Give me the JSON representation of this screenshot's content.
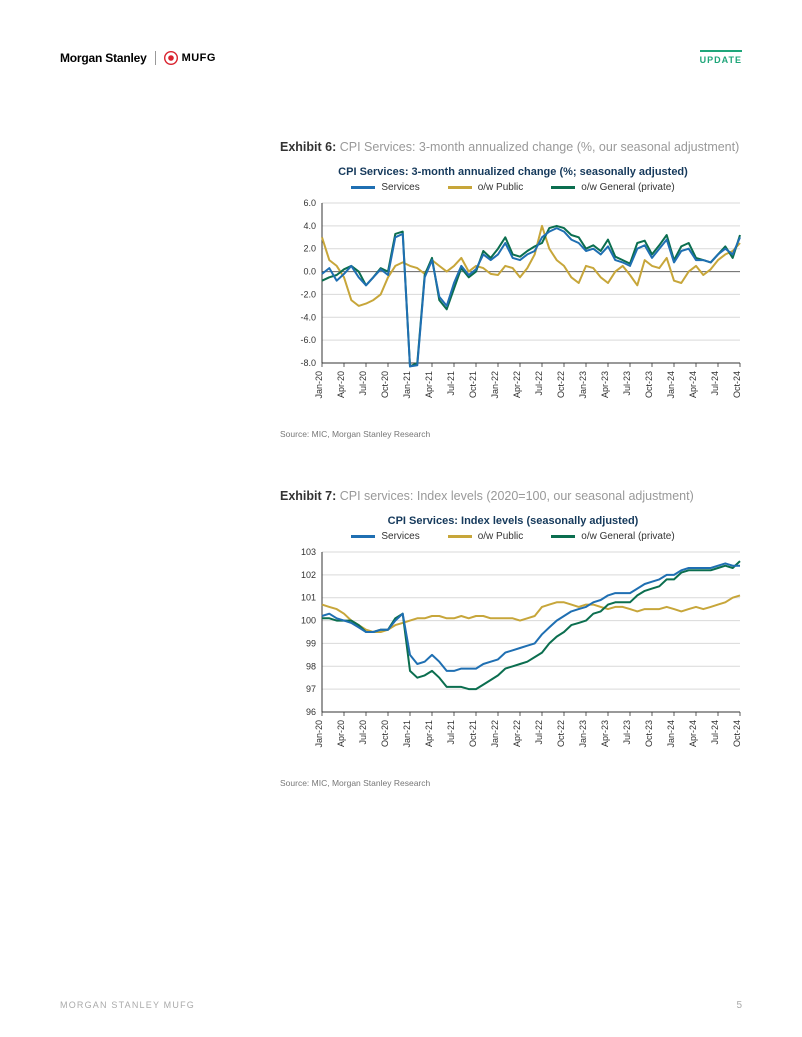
{
  "header": {
    "ms_text": "Morgan Stanley",
    "mufg_text": "MUFG",
    "update_label": "UPDATE"
  },
  "footer": {
    "left": "MORGAN STANLEY MUFG",
    "page": "5"
  },
  "colors": {
    "services": "#1f6fb2",
    "public": "#c7a63a",
    "general": "#0b6e4f",
    "grid": "#d9d9d9",
    "axis": "#333333",
    "title": "#15395b",
    "zero_line": "#7a7a7a"
  },
  "x_labels": [
    "Jan-20",
    "Apr-20",
    "Jul-20",
    "Oct-20",
    "Jan-21",
    "Apr-21",
    "Jul-21",
    "Oct-21",
    "Jan-22",
    "Apr-22",
    "Jul-22",
    "Oct-22",
    "Jan-23",
    "Apr-23",
    "Jul-23",
    "Oct-23",
    "Jan-24",
    "Apr-24",
    "Jul-24",
    "Oct-24"
  ],
  "legend_labels": {
    "services": "Services",
    "public": "o/w Public",
    "general": "o/w General (private)"
  },
  "exhibit6": {
    "num": "Exhibit 6:",
    "title": "CPI Services: 3-month annualized change (%, our seasonal adjustment)",
    "chart_title": "CPI Services: 3-month annualized change (%; seasonally adjusted)",
    "source": "Source: MIC, Morgan Stanley Research",
    "ylim": [
      -8,
      6
    ],
    "ytick_step": 2,
    "yticks": [
      "6.0",
      "4.0",
      "2.0",
      "0.0",
      "-2.0",
      "-4.0",
      "-6.0",
      "-8.0"
    ],
    "series": {
      "services": [
        -0.2,
        0.3,
        -0.8,
        -0.2,
        0.5,
        -0.5,
        -1.2,
        -0.5,
        0.2,
        -0.3,
        3.0,
        3.3,
        -8.3,
        -8.2,
        -0.5,
        1.0,
        -2.2,
        -3.0,
        -1.0,
        0.5,
        -0.3,
        0.2,
        1.5,
        1.0,
        1.5,
        2.5,
        1.2,
        1.0,
        1.5,
        1.8,
        3.0,
        3.5,
        3.8,
        3.5,
        2.8,
        2.5,
        1.8,
        2.0,
        1.5,
        2.2,
        1.0,
        0.8,
        0.5,
        2.0,
        2.3,
        1.2,
        2.0,
        2.8,
        0.8,
        1.8,
        2.0,
        1.0,
        1.0,
        0.8,
        1.5,
        2.0,
        1.5,
        3.0
      ],
      "public": [
        3.0,
        1.0,
        0.5,
        -0.5,
        -2.5,
        -3.0,
        -2.8,
        -2.5,
        -2.0,
        -0.5,
        0.5,
        0.8,
        0.5,
        0.3,
        -0.2,
        1.0,
        0.5,
        0.0,
        0.5,
        1.2,
        0.0,
        0.5,
        0.3,
        -0.2,
        -0.3,
        0.5,
        0.3,
        -0.5,
        0.3,
        1.5,
        4.0,
        2.0,
        1.0,
        0.5,
        -0.5,
        -1.0,
        0.5,
        0.3,
        -0.5,
        -1.0,
        0.0,
        0.5,
        -0.3,
        -1.2,
        1.0,
        0.5,
        0.3,
        1.2,
        -0.8,
        -1.0,
        0.0,
        0.5,
        -0.3,
        0.2,
        1.0,
        1.5,
        1.8,
        2.5
      ],
      "general": [
        -0.8,
        -0.5,
        -0.3,
        0.2,
        0.5,
        0.0,
        -1.2,
        -0.5,
        0.3,
        0.0,
        3.3,
        3.5,
        -8.3,
        -8.0,
        -0.3,
        1.2,
        -2.5,
        -3.3,
        -1.5,
        0.3,
        -0.5,
        0.0,
        1.8,
        1.2,
        2.0,
        3.0,
        1.5,
        1.3,
        1.8,
        2.2,
        2.5,
        3.8,
        4.0,
        3.8,
        3.2,
        3.0,
        2.0,
        2.3,
        1.8,
        2.8,
        1.3,
        1.0,
        0.7,
        2.5,
        2.7,
        1.5,
        2.3,
        3.2,
        1.0,
        2.2,
        2.5,
        1.2,
        1.0,
        0.8,
        1.5,
        2.2,
        1.2,
        3.2
      ]
    }
  },
  "exhibit7": {
    "num": "Exhibit 7:",
    "title": "CPI services: Index levels (2020=100, our seasonal adjustment)",
    "chart_title": "CPI Services: Index levels (seasonally adjusted)",
    "source": "Source: MIC, Morgan Stanley Research",
    "ylim": [
      96,
      103
    ],
    "ytick_step": 1,
    "yticks": [
      "103",
      "102",
      "101",
      "100",
      "99",
      "98",
      "97",
      "96"
    ],
    "series": {
      "services": [
        100.2,
        100.3,
        100.1,
        100.0,
        99.9,
        99.7,
        99.5,
        99.5,
        99.6,
        99.6,
        100.0,
        100.3,
        98.5,
        98.1,
        98.2,
        98.5,
        98.2,
        97.8,
        97.8,
        97.9,
        97.9,
        97.9,
        98.1,
        98.2,
        98.3,
        98.6,
        98.7,
        98.8,
        98.9,
        99.0,
        99.4,
        99.7,
        100.0,
        100.2,
        100.4,
        100.5,
        100.6,
        100.8,
        100.9,
        101.1,
        101.2,
        101.2,
        101.2,
        101.4,
        101.6,
        101.7,
        101.8,
        102.0,
        102.0,
        102.2,
        102.3,
        102.3,
        102.3,
        102.3,
        102.4,
        102.5,
        102.4,
        102.4
      ],
      "public": [
        100.7,
        100.6,
        100.5,
        100.3,
        100.0,
        99.8,
        99.6,
        99.5,
        99.5,
        99.6,
        99.8,
        99.9,
        100.0,
        100.1,
        100.1,
        100.2,
        100.2,
        100.1,
        100.1,
        100.2,
        100.1,
        100.2,
        100.2,
        100.1,
        100.1,
        100.1,
        100.1,
        100.0,
        100.1,
        100.2,
        100.6,
        100.7,
        100.8,
        100.8,
        100.7,
        100.6,
        100.7,
        100.7,
        100.6,
        100.5,
        100.6,
        100.6,
        100.5,
        100.4,
        100.5,
        100.5,
        100.5,
        100.6,
        100.5,
        100.4,
        100.5,
        100.6,
        100.5,
        100.6,
        100.7,
        100.8,
        101.0,
        101.1
      ],
      "general": [
        100.1,
        100.1,
        100.0,
        100.0,
        100.0,
        99.8,
        99.5,
        99.5,
        99.6,
        99.6,
        100.1,
        100.3,
        97.8,
        97.5,
        97.6,
        97.8,
        97.5,
        97.1,
        97.1,
        97.1,
        97.0,
        97.0,
        97.2,
        97.4,
        97.6,
        97.9,
        98.0,
        98.1,
        98.2,
        98.4,
        98.6,
        99.0,
        99.3,
        99.5,
        99.8,
        99.9,
        100.0,
        100.3,
        100.4,
        100.7,
        100.8,
        100.8,
        100.8,
        101.1,
        101.3,
        101.4,
        101.5,
        101.8,
        101.8,
        102.1,
        102.2,
        102.2,
        102.2,
        102.2,
        102.3,
        102.4,
        102.3,
        102.6
      ]
    }
  }
}
